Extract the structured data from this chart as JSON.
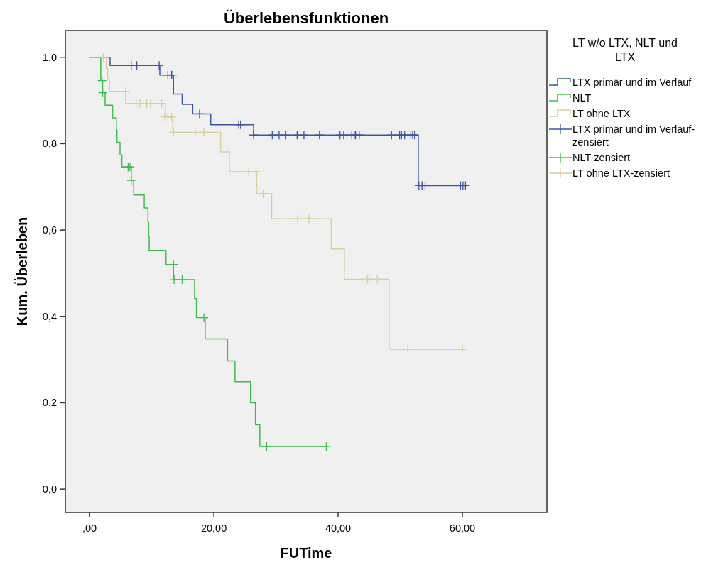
{
  "chart_data": {
    "type": "step",
    "title": "Überlebensfunktionen",
    "xlabel": "FUTime",
    "ylabel": "Kum. Überleben",
    "legend_title": "LT w/o LTX, NLT und LTX",
    "legend": "right",
    "grid": false,
    "xlim": [
      -3.9,
      73.6
    ],
    "ylim": [
      -0.054,
      1.062
    ],
    "xticks": [
      {
        "value": 0,
        "label": ",00"
      },
      {
        "value": 20,
        "label": "20,00"
      },
      {
        "value": 40,
        "label": "40,00"
      },
      {
        "value": 60,
        "label": "60,00"
      }
    ],
    "yticks": [
      {
        "value": 0,
        "label": "0,0"
      },
      {
        "value": 0.2,
        "label": "0,2"
      },
      {
        "value": 0.4,
        "label": "0,4"
      },
      {
        "value": 0.6,
        "label": "0,6"
      },
      {
        "value": 0.8,
        "label": "0,8"
      },
      {
        "value": 1,
        "label": "1,0"
      }
    ],
    "series": [
      {
        "name": "LTX primär und im Verlauf",
        "color": "#3e53a4",
        "marker": "none",
        "x": [
          0,
          3.3,
          11.3,
          13.5,
          14.9,
          16.6,
          19.5,
          26.4,
          52.9,
          60.8
        ],
        "values": [
          1,
          0.981,
          0.959,
          0.915,
          0.891,
          0.869,
          0.844,
          0.82,
          0.703,
          0.703
        ]
      },
      {
        "name": "NLT",
        "color": "#3cbc4c",
        "marker": "none",
        "x": [
          0,
          1.8,
          2.1,
          2.5,
          3.7,
          4.3,
          4.4,
          4.9,
          5.2,
          6.7,
          7.1,
          8.8,
          9.4,
          9.5,
          9.6,
          12.3,
          13.5,
          16.9,
          17.2,
          18.6,
          22.2,
          23.4,
          25.9,
          26.7,
          27.4,
          38.1
        ],
        "values": [
          1,
          0.946,
          0.918,
          0.889,
          0.86,
          0.832,
          0.803,
          0.774,
          0.746,
          0.715,
          0.681,
          0.651,
          0.618,
          0.585,
          0.553,
          0.52,
          0.485,
          0.441,
          0.397,
          0.348,
          0.297,
          0.249,
          0.2,
          0.149,
          0.099,
          0.099
        ]
      },
      {
        "name": "LT ohne LTX",
        "color": "#d6d09c",
        "marker": "none",
        "x": [
          0,
          2.7,
          2.9,
          3.2,
          5.8,
          12.2,
          13.4,
          21.1,
          22.5,
          26.9,
          29.3,
          38.9,
          41.0,
          48.2,
          60.5
        ],
        "values": [
          1,
          0.974,
          0.949,
          0.921,
          0.893,
          0.862,
          0.826,
          0.781,
          0.735,
          0.684,
          0.626,
          0.556,
          0.486,
          0.324,
          0.324
        ]
      },
      {
        "name": "LTX primär und im Verlauf-zensiert",
        "type": "scatter",
        "color": "#3e53a4",
        "marker": "cross",
        "x": [
          6.7,
          7.6,
          11.2,
          12.6,
          13.2,
          13.4,
          17.7,
          24.0,
          24.3,
          26.4,
          29.4,
          30.5,
          31.5,
          33.4,
          34.5,
          37.0,
          40.3,
          40.9,
          42.2,
          42.6,
          42.8,
          43.4,
          48.6,
          49.9,
          50.2,
          50.7,
          51.7,
          52.0,
          52.3,
          53.0,
          53.5,
          54.0,
          59.7,
          60.1,
          60.5
        ],
        "values": [
          0.981,
          0.981,
          0.981,
          0.959,
          0.959,
          0.959,
          0.869,
          0.844,
          0.844,
          0.82,
          0.82,
          0.82,
          0.82,
          0.82,
          0.82,
          0.82,
          0.82,
          0.82,
          0.82,
          0.82,
          0.82,
          0.82,
          0.82,
          0.82,
          0.82,
          0.82,
          0.82,
          0.82,
          0.82,
          0.703,
          0.703,
          0.703,
          0.703,
          0.703,
          0.703
        ]
      },
      {
        "name": "NLT-zensiert",
        "type": "scatter",
        "color": "#3cbc4c",
        "marker": "cross",
        "x": [
          2.0,
          2.1,
          6.2,
          6.5,
          6.7,
          13.5,
          13.6,
          14.9,
          18.4,
          28.5,
          38.1
        ],
        "values": [
          0.946,
          0.918,
          0.746,
          0.746,
          0.715,
          0.52,
          0.485,
          0.485,
          0.397,
          0.099,
          0.099
        ]
      },
      {
        "name": "LT ohne LTX-zensiert",
        "type": "scatter",
        "color": "#d6d09c",
        "marker": "cross",
        "x": [
          2.2,
          5.8,
          7.5,
          8.1,
          9.2,
          9.8,
          11.6,
          12.1,
          12.6,
          13.2,
          13.5,
          17.0,
          18.4,
          25.6,
          26.8,
          27.9,
          33.5,
          35.3,
          44.7,
          45.0,
          46.3,
          51.2,
          60.0
        ],
        "values": [
          1,
          0.921,
          0.893,
          0.893,
          0.893,
          0.893,
          0.893,
          0.862,
          0.862,
          0.862,
          0.826,
          0.826,
          0.826,
          0.735,
          0.735,
          0.684,
          0.626,
          0.626,
          0.486,
          0.486,
          0.486,
          0.324,
          0.324
        ]
      }
    ]
  }
}
